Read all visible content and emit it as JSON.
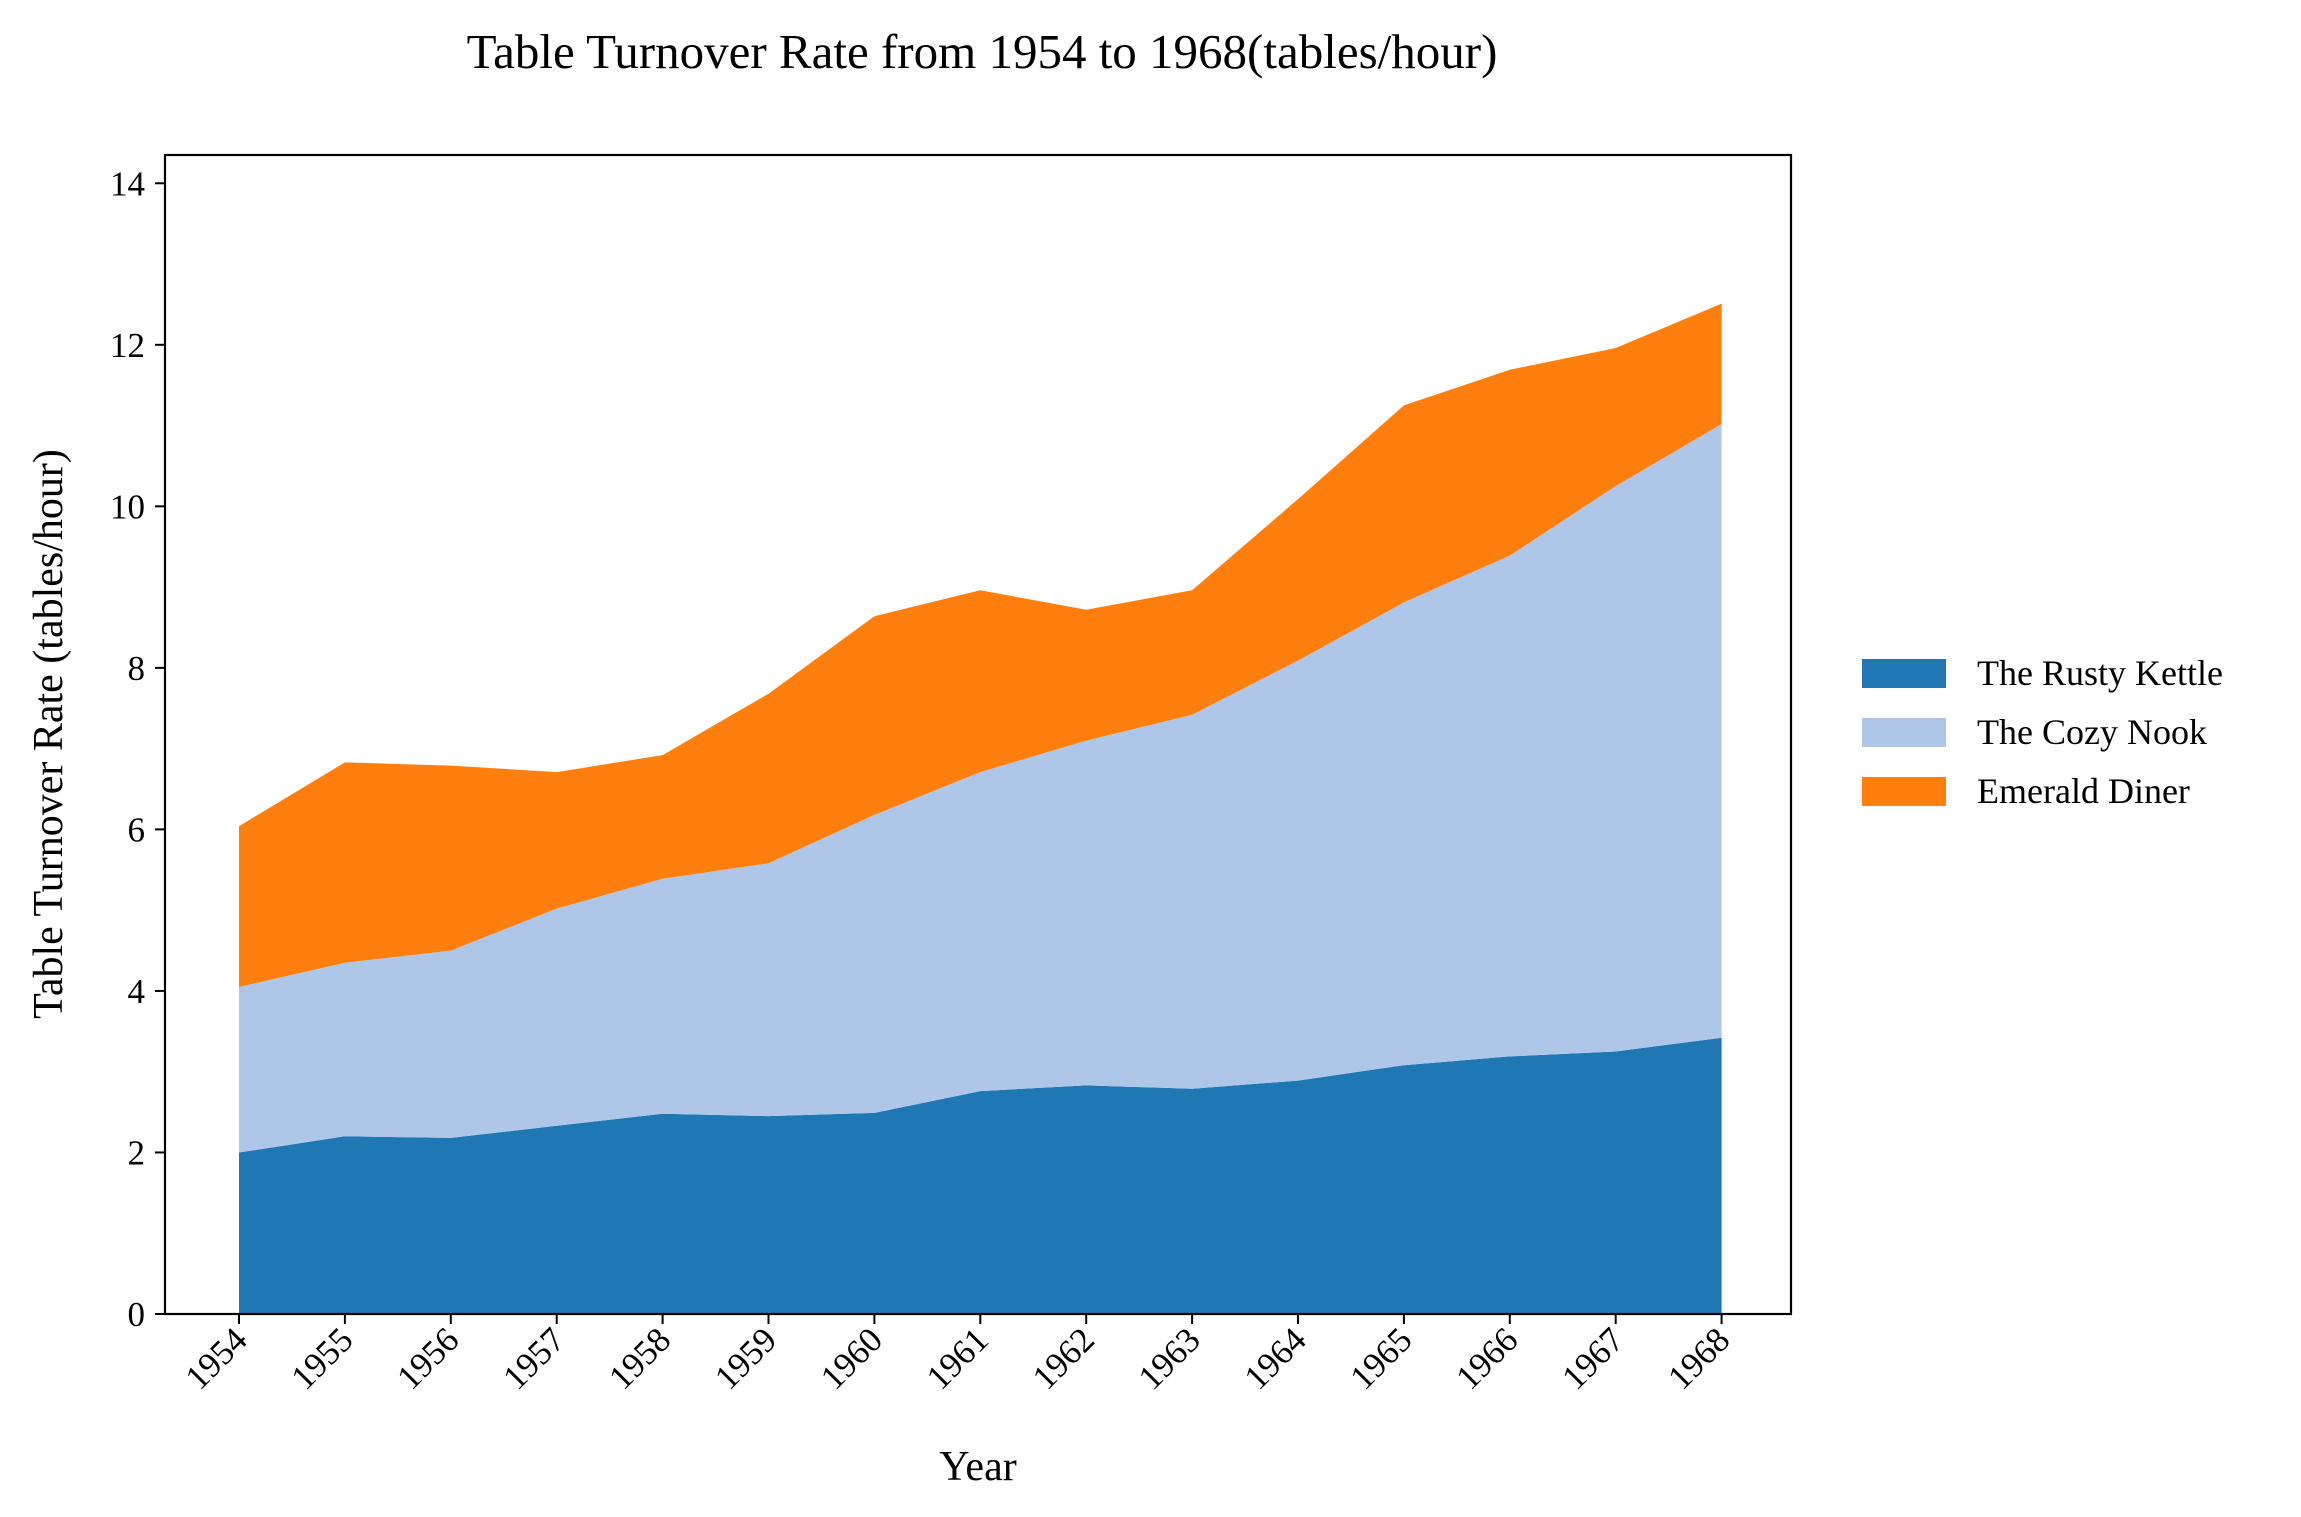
{
  "chart_data": {
    "type": "area",
    "stacked": true,
    "title": "Table Turnover Rate from 1954 to 1968(tables/hour)",
    "xlabel": "Year",
    "ylabel": "Table Turnover Rate (tables/hour)",
    "x": [
      "1954",
      "1955",
      "1956",
      "1957",
      "1958",
      "1959",
      "1960",
      "1961",
      "1962",
      "1963",
      "1964",
      "1965",
      "1966",
      "1967",
      "1968"
    ],
    "ylim": [
      0,
      14.35
    ],
    "yticks": [
      0,
      2,
      4,
      6,
      8,
      10,
      12,
      14
    ],
    "grid": false,
    "legend_position": "right",
    "series": [
      {
        "name": "The Rusty Kettle",
        "color": "#1f77b4",
        "values": [
          2.0,
          2.2,
          2.18,
          2.33,
          2.48,
          2.45,
          2.49,
          2.76,
          2.83,
          2.79,
          2.89,
          3.08,
          3.19,
          3.25,
          3.42
        ]
      },
      {
        "name": "The Cozy Nook",
        "color": "#aec7e8",
        "values": [
          2.05,
          2.15,
          2.32,
          2.69,
          2.91,
          3.13,
          3.69,
          3.95,
          4.27,
          4.63,
          5.2,
          5.73,
          6.2,
          7.0,
          7.6
        ]
      },
      {
        "name": "Emerald Diner",
        "color": "#ff7f0e",
        "values": [
          1.99,
          2.48,
          2.29,
          1.69,
          1.53,
          2.1,
          2.46,
          2.25,
          1.62,
          1.54,
          2.0,
          2.44,
          2.3,
          1.71,
          1.49
        ]
      }
    ]
  }
}
